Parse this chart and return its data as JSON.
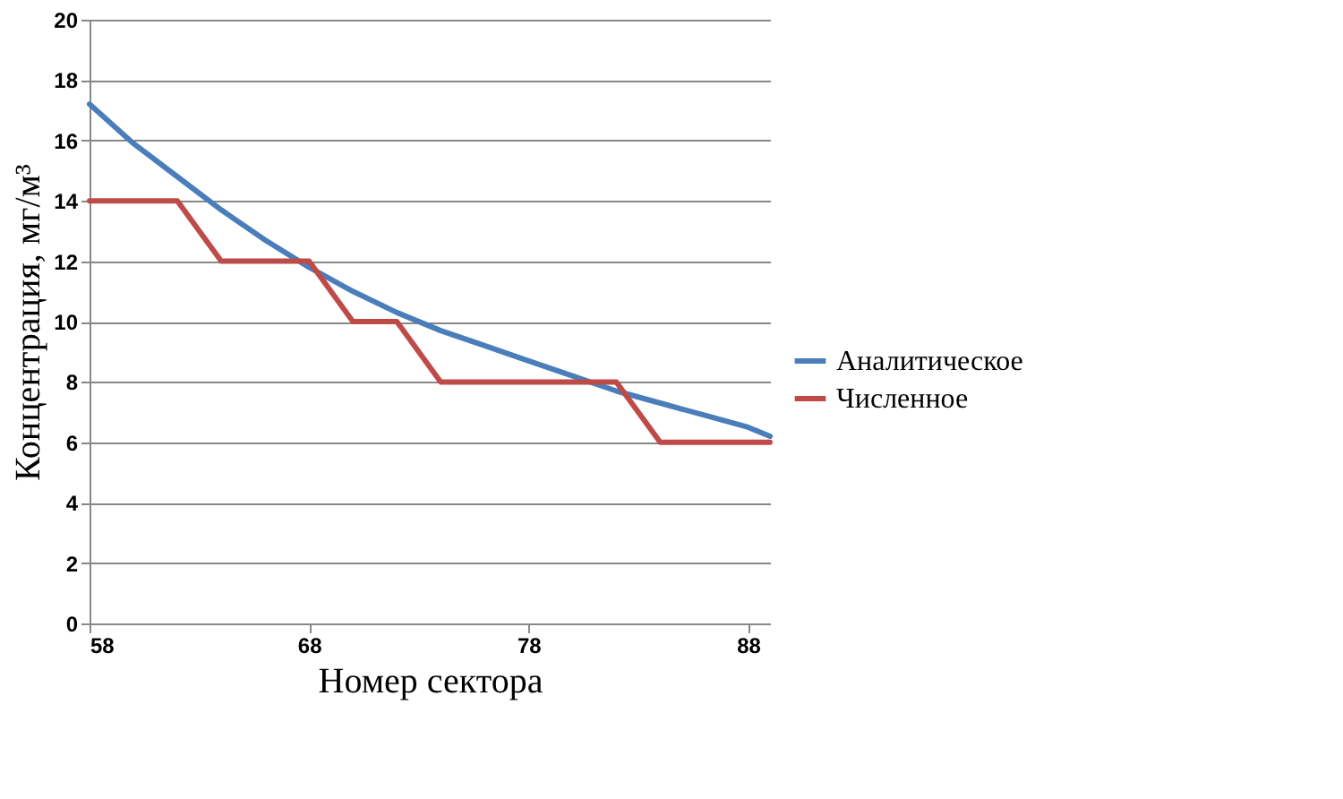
{
  "chart_data": {
    "type": "line",
    "xlabel": "Номер сектора",
    "ylabel": "Концентрация, мг/м³",
    "xlim": [
      58,
      89
    ],
    "xticks": [
      58,
      68,
      78,
      88
    ],
    "ylim": [
      0,
      20
    ],
    "yticks": [
      0,
      2,
      4,
      6,
      8,
      10,
      12,
      14,
      16,
      18,
      20
    ],
    "grid": "y",
    "legend": "right",
    "marker": "none",
    "line_style": "solid",
    "series": [
      {
        "name": "Аналитическое",
        "color": "#4a7ebb",
        "x": [
          58,
          60,
          62,
          64,
          66,
          68,
          70,
          72,
          74,
          76,
          78,
          80,
          82,
          84,
          86,
          88,
          89
        ],
        "values": [
          17.2,
          15.9,
          14.8,
          13.7,
          12.7,
          11.8,
          11.0,
          10.3,
          9.7,
          9.2,
          8.7,
          8.2,
          7.7,
          7.3,
          6.9,
          6.5,
          6.2
        ]
      },
      {
        "name": "Численное",
        "color": "#be4b48",
        "x": [
          58,
          62,
          64,
          68,
          70,
          72,
          74,
          82,
          84,
          89
        ],
        "values": [
          14,
          14,
          12,
          12,
          10,
          10,
          8,
          8,
          6,
          6
        ]
      }
    ]
  }
}
